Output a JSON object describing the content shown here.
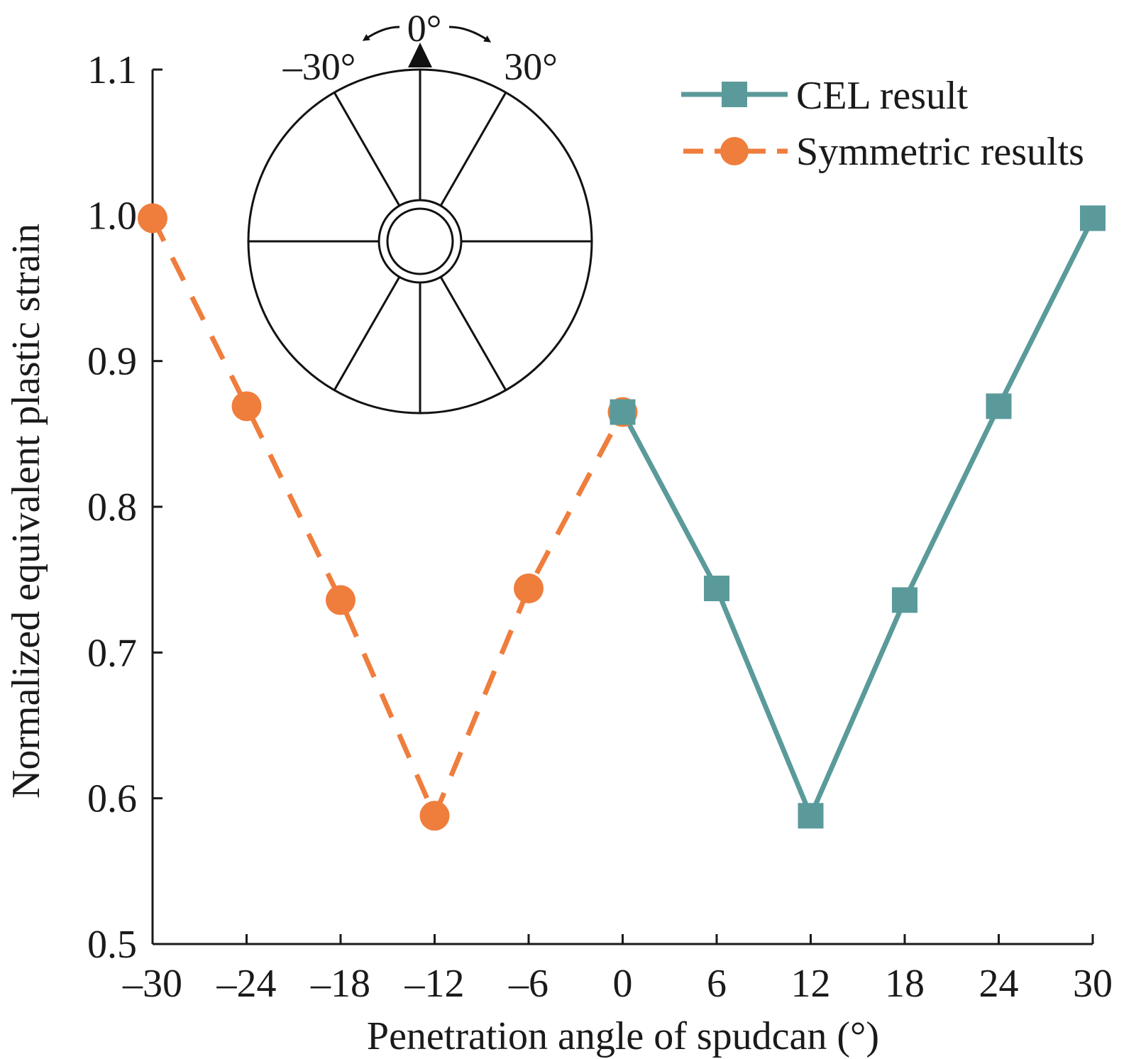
{
  "chart_data": {
    "type": "line",
    "title": "",
    "xlabel": "Penetration angle of spudcan (°)",
    "ylabel": "Normalized equivalent plastic strain",
    "xlim": [
      -30,
      30
    ],
    "ylim": [
      0.5,
      1.1
    ],
    "xticks": [
      -30,
      -24,
      -18,
      -12,
      -6,
      0,
      6,
      12,
      18,
      24,
      30
    ],
    "xtick_labels": [
      "–30",
      "–24",
      "–18",
      "–12",
      "–6",
      "0",
      "6",
      "12",
      "18",
      "24",
      "30"
    ],
    "yticks": [
      0.5,
      0.6,
      0.7,
      0.8,
      0.9,
      1.0,
      1.1
    ],
    "ytick_labels": [
      "0.5",
      "0.6",
      "0.7",
      "0.8",
      "0.9",
      "1.0",
      "1.1"
    ],
    "grid": false,
    "legend_position": "top-right",
    "series": [
      {
        "name": "CEL result",
        "color": "#5b9a9b",
        "marker": "square",
        "line_style": "solid",
        "x": [
          0,
          6,
          12,
          18,
          24,
          30
        ],
        "values": [
          0.865,
          0.744,
          0.588,
          0.736,
          0.869,
          0.998
        ]
      },
      {
        "name": "Symmetric results",
        "color": "#ef7d3c",
        "marker": "circle",
        "line_style": "dashed",
        "x": [
          -30,
          -24,
          -18,
          -12,
          -6,
          0
        ],
        "values": [
          0.998,
          0.869,
          0.736,
          0.588,
          0.744,
          0.865
        ]
      }
    ],
    "annotations": {
      "inset": "spudcan plan view with angle indicator",
      "angle_labels": [
        "–30°",
        "0°",
        "30°"
      ]
    }
  }
}
